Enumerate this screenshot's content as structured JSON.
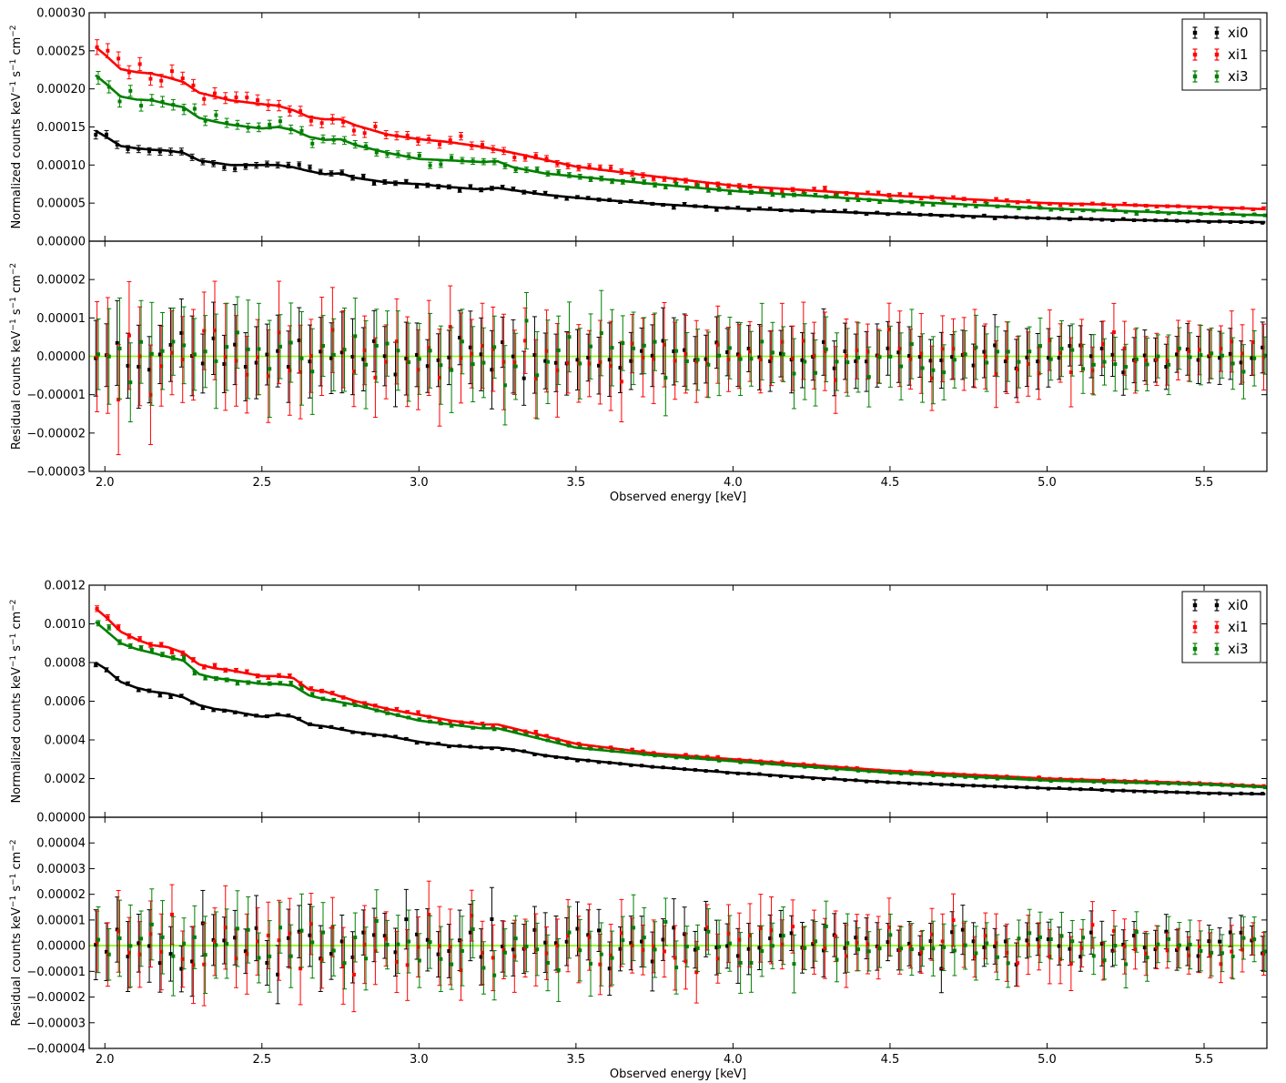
{
  "chart_data": [
    {
      "type": "scatter",
      "name": "top-spectrum",
      "ylabel_html": "Normalized counts keV⁻¹ s⁻¹ cm⁻²",
      "ylabel_parts": [
        "Normalized counts keV",
        "−1",
        " s",
        "−1",
        " cm",
        "−2"
      ],
      "xlim": [
        1.95,
        5.7
      ],
      "ylim": [
        0.0,
        0.0003
      ],
      "yticks": [
        0.0,
        5e-05,
        0.0001,
        0.00015,
        0.0002,
        0.00025,
        0.0003
      ],
      "ytick_labels": [
        "0.00000",
        "0.00005",
        "0.00010",
        "0.00015",
        "0.00020",
        "0.00025",
        "0.00030"
      ],
      "legend": {
        "location": "upper right",
        "entries": [
          "xi0",
          "xi1",
          "xi3"
        ]
      },
      "series": [
        {
          "name": "xi0",
          "color": "#000000",
          "anchors_x": [
            1.97,
            2.0,
            2.05,
            2.1,
            2.15,
            2.2,
            2.25,
            2.3,
            2.35,
            2.4,
            2.5,
            2.55,
            2.6,
            2.65,
            2.7,
            2.75,
            2.8,
            2.9,
            3.0,
            3.1,
            3.2,
            3.25,
            3.3,
            3.4,
            3.5,
            3.75,
            4.0,
            4.5,
            5.0,
            5.5,
            5.7
          ],
          "anchors_y": [
            0.000145,
            0.000138,
            0.000125,
            0.000122,
            0.00012,
            0.000119,
            0.000116,
            0.000106,
            0.000103,
            0.0001,
            0.0001,
            0.0001,
            9.7e-05,
            9.2e-05,
            8.8e-05,
            8.9e-05,
            8.3e-05,
            7.7e-05,
            7.5e-05,
            7.1e-05,
            6.8e-05,
            7e-05,
            6.7e-05,
            6.1e-05,
            5.7e-05,
            4.9e-05,
            4.3e-05,
            3.6e-05,
            3e-05,
            2.6e-05,
            2.5e-05
          ],
          "scatter_rel": 0.07
        },
        {
          "name": "xi1",
          "color": "#ff0000",
          "anchors_x": [
            1.97,
            2.0,
            2.05,
            2.1,
            2.15,
            2.2,
            2.25,
            2.3,
            2.35,
            2.4,
            2.5,
            2.55,
            2.6,
            2.65,
            2.7,
            2.75,
            2.8,
            2.9,
            3.0,
            3.1,
            3.2,
            3.25,
            3.3,
            3.4,
            3.5,
            3.75,
            4.0,
            4.5,
            5.0,
            5.5,
            5.7
          ],
          "anchors_y": [
            0.000255,
            0.000245,
            0.000226,
            0.000222,
            0.00022,
            0.000215,
            0.000209,
            0.000195,
            0.00019,
            0.000185,
            0.00018,
            0.000178,
            0.000172,
            0.000163,
            0.00016,
            0.00016,
            0.000152,
            0.00014,
            0.000134,
            0.00013,
            0.000124,
            0.00012,
            0.000116,
            0.000107,
            9.8e-05,
            8.5e-05,
            7.3e-05,
            6e-05,
            5e-05,
            4.5e-05,
            4.2e-05
          ],
          "scatter_rel": 0.07
        },
        {
          "name": "xi3",
          "color": "#008000",
          "anchors_x": [
            1.97,
            2.0,
            2.05,
            2.1,
            2.15,
            2.2,
            2.25,
            2.3,
            2.35,
            2.4,
            2.5,
            2.55,
            2.6,
            2.65,
            2.7,
            2.75,
            2.8,
            2.9,
            3.0,
            3.1,
            3.2,
            3.25,
            3.3,
            3.4,
            3.5,
            3.75,
            4.0,
            4.5,
            5.0,
            5.5,
            5.7
          ],
          "anchors_y": [
            0.000218,
            0.000208,
            0.00019,
            0.000186,
            0.000185,
            0.00018,
            0.000176,
            0.000162,
            0.000157,
            0.000153,
            0.000148,
            0.00015,
            0.000146,
            0.000137,
            0.000133,
            0.000134,
            0.000126,
            0.000116,
            0.000108,
            0.000106,
            0.000104,
            0.000105,
            9.7e-05,
            8.9e-05,
            8.5e-05,
            7.5e-05,
            6.6e-05,
            5.3e-05,
            4.3e-05,
            3.6e-05,
            3.4e-05
          ],
          "scatter_rel": 0.07
        }
      ]
    },
    {
      "type": "scatter",
      "name": "top-residuals",
      "ylabel_parts": [
        "Residual counts keV",
        "−1",
        " s",
        "−1",
        " cm",
        "−2"
      ],
      "xlabel": "Observed energy [keV]",
      "xlim": [
        1.95,
        5.7
      ],
      "ylim": [
        -3e-05,
        3e-05
      ],
      "xticks": [
        2.0,
        2.5,
        3.0,
        3.5,
        4.0,
        4.5,
        5.0,
        5.5
      ],
      "xtick_labels": [
        "2.0",
        "2.5",
        "3.0",
        "3.5",
        "4.0",
        "4.5",
        "5.0",
        "5.5"
      ],
      "yticks": [
        -3e-05,
        -2e-05,
        -1e-05,
        0.0,
        1e-05,
        2e-05
      ],
      "ytick_labels": [
        "−0.00003",
        "−0.00002",
        "−0.00001",
        "0.00000",
        "0.00001",
        "0.00002"
      ],
      "zero_line_color": "#7fff00",
      "series": [
        {
          "name": "xi0",
          "color": "#000000",
          "err": 7.5e-06,
          "spread_low": 4.5e-06,
          "spread_high": 3.5e-06
        },
        {
          "name": "xi1",
          "color": "#ff0000",
          "err": 9.5e-06,
          "spread_low": 7.5e-06,
          "spread_high": 5.5e-06
        },
        {
          "name": "xi3",
          "color": "#008000",
          "err": 8.5e-06,
          "spread_low": 6.5e-06,
          "spread_high": 4.5e-06
        }
      ]
    },
    {
      "type": "scatter",
      "name": "bottom-spectrum",
      "ylabel_parts": [
        "Normalized counts keV",
        "−1",
        " s",
        "−1",
        " cm",
        "−2"
      ],
      "xlim": [
        1.95,
        5.7
      ],
      "ylim": [
        0.0,
        0.0012
      ],
      "yticks": [
        0.0,
        0.0002,
        0.0004,
        0.0006,
        0.0008,
        0.001,
        0.0012
      ],
      "ytick_labels": [
        "0.00000",
        "0.0002",
        "0.0004",
        "0.0006",
        "0.0008",
        "0.0010",
        "0.0012"
      ],
      "legend": {
        "location": "upper right",
        "entries": [
          "xi0",
          "xi1",
          "xi3"
        ]
      },
      "series": [
        {
          "name": "xi0",
          "color": "#000000",
          "anchors_x": [
            1.97,
            2.0,
            2.05,
            2.1,
            2.15,
            2.2,
            2.25,
            2.3,
            2.35,
            2.4,
            2.5,
            2.55,
            2.6,
            2.65,
            2.7,
            2.8,
            2.9,
            3.0,
            3.1,
            3.2,
            3.25,
            3.3,
            3.4,
            3.5,
            3.75,
            4.0,
            4.5,
            5.0,
            5.5,
            5.7
          ],
          "anchors_y": [
            0.0008,
            0.00077,
            0.0007,
            0.00067,
            0.00065,
            0.00064,
            0.00062,
            0.00058,
            0.00056,
            0.00055,
            0.00052,
            0.00053,
            0.00052,
            0.00048,
            0.00047,
            0.00044,
            0.00042,
            0.00039,
            0.00037,
            0.00036,
            0.00036,
            0.00035,
            0.00032,
            0.0003,
            0.00026,
            0.00023,
            0.00018,
            0.00015,
            0.000125,
            0.00012
          ],
          "scatter_rel": 0.025
        },
        {
          "name": "xi1",
          "color": "#ff0000",
          "anchors_x": [
            1.97,
            2.0,
            2.05,
            2.1,
            2.15,
            2.2,
            2.25,
            2.3,
            2.35,
            2.4,
            2.5,
            2.55,
            2.6,
            2.65,
            2.7,
            2.8,
            2.9,
            3.0,
            3.1,
            3.2,
            3.25,
            3.3,
            3.4,
            3.5,
            3.75,
            4.0,
            4.5,
            5.0,
            5.5,
            5.7
          ],
          "anchors_y": [
            0.00108,
            0.00104,
            0.00096,
            0.00092,
            0.00089,
            0.00088,
            0.00085,
            0.00079,
            0.00077,
            0.00076,
            0.00073,
            0.00073,
            0.00072,
            0.00066,
            0.00065,
            0.0006,
            0.00056,
            0.00053,
            0.0005,
            0.00048,
            0.00048,
            0.00046,
            0.00042,
            0.00038,
            0.00033,
            0.0003,
            0.00024,
            0.0002,
            0.000175,
            0.00016
          ],
          "scatter_rel": 0.025
        },
        {
          "name": "xi3",
          "color": "#008000",
          "anchors_x": [
            1.97,
            2.0,
            2.05,
            2.1,
            2.15,
            2.2,
            2.25,
            2.3,
            2.35,
            2.4,
            2.5,
            2.55,
            2.6,
            2.65,
            2.7,
            2.8,
            2.9,
            3.0,
            3.1,
            3.2,
            3.25,
            3.3,
            3.4,
            3.5,
            3.75,
            4.0,
            4.5,
            5.0,
            5.5,
            5.7
          ],
          "anchors_y": [
            0.00101,
            0.00097,
            0.0009,
            0.00087,
            0.00085,
            0.00083,
            0.00081,
            0.00074,
            0.00072,
            0.00071,
            0.00069,
            0.00069,
            0.00068,
            0.00063,
            0.00061,
            0.00058,
            0.00054,
            0.0005,
            0.00048,
            0.00046,
            0.00046,
            0.00044,
            0.0004,
            0.00036,
            0.00032,
            0.00029,
            0.00023,
            0.00019,
            0.00017,
            0.000155
          ],
          "scatter_rel": 0.025
        }
      ]
    },
    {
      "type": "scatter",
      "name": "bottom-residuals",
      "ylabel_parts": [
        "Residual counts keV",
        "−1",
        " s",
        "−1",
        " cm",
        "−2"
      ],
      "xlabel": "Observed energy [keV]",
      "xlim": [
        1.95,
        5.7
      ],
      "ylim": [
        -4e-05,
        5e-05
      ],
      "xticks": [
        2.0,
        2.5,
        3.0,
        3.5,
        4.0,
        4.5,
        5.0,
        5.5
      ],
      "xtick_labels": [
        "2.0",
        "2.5",
        "3.0",
        "3.5",
        "4.0",
        "4.5",
        "5.0",
        "5.5"
      ],
      "yticks": [
        -4e-05,
        -3e-05,
        -2e-05,
        -1e-05,
        0.0,
        1e-05,
        2e-05,
        3e-05,
        4e-05
      ],
      "ytick_labels": [
        "−0.00004",
        "−0.00003",
        "−0.00002",
        "−0.00001",
        "0.00000",
        "0.00001",
        "0.00002",
        "0.00003",
        "0.00004"
      ],
      "zero_line_color": "#7fff00",
      "series": [
        {
          "name": "xi0",
          "color": "#000000",
          "err": 9e-06,
          "spread_low": 8.5e-06,
          "spread_high": 6.5e-06
        },
        {
          "name": "xi1",
          "color": "#ff0000",
          "err": 1.1e-05,
          "spread_low": 1.05e-05,
          "spread_high": 8.5e-06
        },
        {
          "name": "xi3",
          "color": "#008000",
          "err": 1e-05,
          "spread_low": 9.5e-06,
          "spread_high": 7.5e-06
        }
      ]
    }
  ]
}
